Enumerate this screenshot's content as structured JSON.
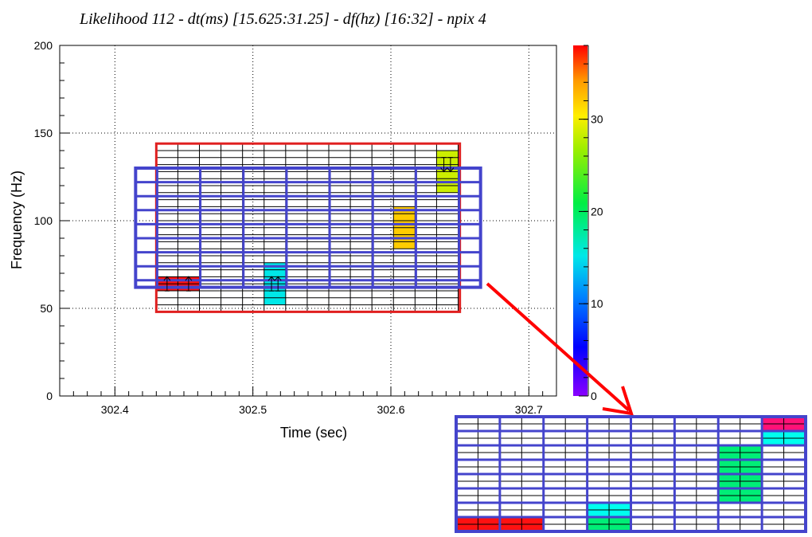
{
  "chart_data": {
    "type": "heatmap",
    "title": "Likelihood 112 - dt(ms) [15.625:31.25] - df(hz) [16:32] - npix 4",
    "xlabel": "Time (sec)",
    "ylabel": "Frequency (Hz)",
    "xlim": [
      302.36,
      302.72
    ],
    "ylim": [
      0,
      200
    ],
    "x_ticks": [
      "302.4",
      "302.5",
      "302.6",
      "302.7"
    ],
    "y_ticks": [
      "0",
      "50",
      "100",
      "150",
      "200"
    ],
    "grid": true,
    "colorbar": {
      "min": 0,
      "max": 38,
      "ticks": [
        "0",
        "10",
        "20",
        "30"
      ]
    },
    "layers": [
      {
        "name": "fine",
        "x_range": [
          302.43,
          302.65
        ],
        "y_range": [
          48,
          144
        ],
        "dt_ms": 15.625,
        "df_hz": 8,
        "border_color": "#e02020"
      },
      {
        "name": "coarse",
        "x_range": [
          302.415,
          302.665
        ],
        "y_range": [
          62,
          130
        ],
        "dt_ms": 31.25,
        "df_hz": 8,
        "border_color": "#4444cc"
      }
    ],
    "pixels": [
      {
        "x": 302.4378,
        "y": 64,
        "value": 37,
        "color": "#ff1111"
      },
      {
        "x": 302.4534,
        "y": 64,
        "value": 37,
        "color": "#ff1111"
      },
      {
        "x": 302.5159,
        "y": 56,
        "value": 11,
        "color": "#00e8e8"
      },
      {
        "x": 302.5159,
        "y": 64,
        "value": 11,
        "color": "#00e8e8"
      },
      {
        "x": 302.5159,
        "y": 72,
        "value": 11,
        "color": "#00e8e8"
      },
      {
        "x": 302.6096,
        "y": 88,
        "value": 33,
        "color": "#ffcc00"
      },
      {
        "x": 302.6096,
        "y": 96,
        "value": 33,
        "color": "#ffcc00"
      },
      {
        "x": 302.6096,
        "y": 104,
        "value": 33,
        "color": "#ffcc00"
      },
      {
        "x": 302.6409,
        "y": 120,
        "value": 28,
        "color": "#ccee00"
      },
      {
        "x": 302.6409,
        "y": 128,
        "value": 28,
        "color": "#ccee00"
      },
      {
        "x": 302.6409,
        "y": 136,
        "value": 28,
        "color": "#ccee00"
      }
    ],
    "arrows": [
      {
        "x": 302.4378,
        "y": 64,
        "dir": "up"
      },
      {
        "x": 302.4534,
        "y": 64,
        "dir": "up"
      },
      {
        "x": 302.5135,
        "y": 64,
        "dir": "up"
      },
      {
        "x": 302.5182,
        "y": 64,
        "dir": "up"
      },
      {
        "x": 302.6384,
        "y": 132,
        "dir": "down"
      },
      {
        "x": 302.6432,
        "y": 132,
        "dir": "down"
      }
    ],
    "inset": {
      "cols": 8,
      "rows": 8,
      "cells": [
        {
          "col": 7,
          "row": 0,
          "color": "#ff1177"
        },
        {
          "col": 7,
          "row": 1,
          "color": "#00ffee"
        },
        {
          "col": 6,
          "row": 2,
          "color": "#00ee77"
        },
        {
          "col": 6,
          "row": 3,
          "color": "#00ee77"
        },
        {
          "col": 6,
          "row": 4,
          "color": "#00ee77"
        },
        {
          "col": 6,
          "row": 5,
          "color": "#00ee77"
        },
        {
          "col": 3,
          "row": 6,
          "color": "#00ffee"
        },
        {
          "col": 0,
          "row": 7,
          "color": "#ff1111"
        },
        {
          "col": 1,
          "row": 7,
          "color": "#ff1111"
        },
        {
          "col": 3,
          "row": 7,
          "color": "#00ee77"
        }
      ]
    }
  }
}
